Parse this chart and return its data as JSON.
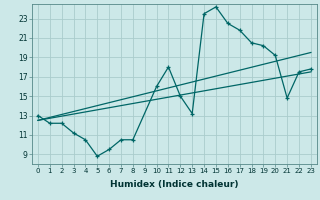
{
  "xlabel": "Humidex (Indice chaleur)",
  "bg_color": "#cce8e8",
  "grid_color": "#aacccc",
  "line_color": "#006666",
  "xlim": [
    -0.5,
    23.5
  ],
  "ylim": [
    8.0,
    24.5
  ],
  "yticks": [
    9,
    11,
    13,
    15,
    17,
    19,
    21,
    23
  ],
  "xticks": [
    0,
    1,
    2,
    3,
    4,
    5,
    6,
    7,
    8,
    9,
    10,
    11,
    12,
    13,
    14,
    15,
    16,
    17,
    18,
    19,
    20,
    21,
    22,
    23
  ],
  "series1_x": [
    0,
    1,
    2,
    3,
    4,
    5,
    6,
    7,
    8,
    10,
    11,
    12,
    13,
    14,
    15,
    16,
    17,
    18,
    19,
    20,
    21,
    22,
    23
  ],
  "series1_y": [
    13.0,
    12.2,
    12.2,
    11.2,
    10.5,
    8.8,
    9.5,
    10.5,
    10.5,
    16.0,
    18.0,
    15.0,
    13.2,
    23.5,
    24.2,
    22.5,
    21.8,
    20.5,
    20.2,
    19.2,
    14.8,
    17.5,
    17.8
  ],
  "trendline1_x": [
    0,
    23
  ],
  "trendline1_y": [
    12.5,
    17.5
  ],
  "trendline2_x": [
    0,
    23
  ],
  "trendline2_y": [
    12.5,
    19.5
  ]
}
